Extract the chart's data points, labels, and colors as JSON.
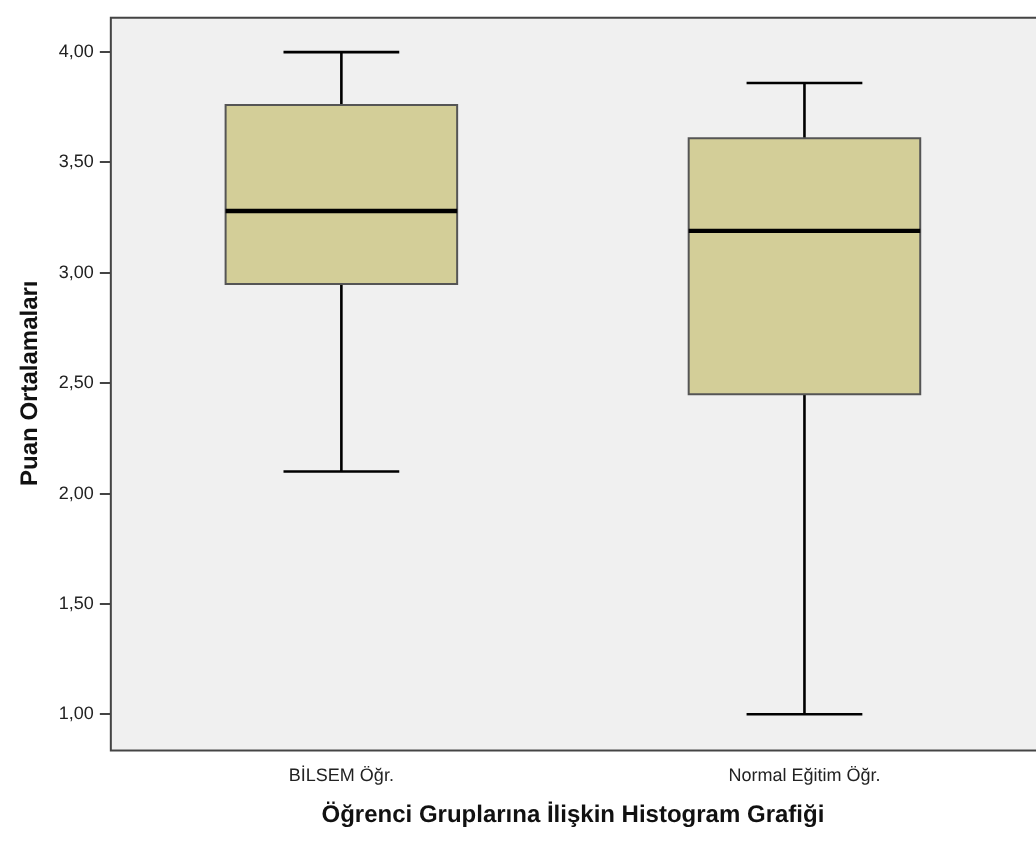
{
  "chart_data": {
    "type": "box",
    "xlabel": "Öğrenci Gruplarına İlişkin Histogram Grafiği",
    "ylabel": "Puan Ortalamaları",
    "categories": [
      "BİLSEM Öğr.",
      "Normal Eğitim Öğr."
    ],
    "color": "#d3ce98",
    "boxes": [
      {
        "low": 2.1,
        "q1": 2.95,
        "median": 3.28,
        "q3": 3.76,
        "high": 4.0
      },
      {
        "low": 1.0,
        "q1": 2.45,
        "median": 3.19,
        "q3": 3.61,
        "high": 3.86
      }
    ],
    "ylim": [
      0.84,
      4.16
    ],
    "yticks": [
      {
        "value": 1,
        "label": "1,00"
      },
      {
        "value": 1.5,
        "label": "1,50"
      },
      {
        "value": 2,
        "label": "2,00"
      },
      {
        "value": 2.5,
        "label": "2,50"
      },
      {
        "value": 3,
        "label": "3,00"
      },
      {
        "value": 3.5,
        "label": "3,50"
      },
      {
        "value": 4,
        "label": "4,00"
      }
    ],
    "grid": false,
    "legend": false
  }
}
